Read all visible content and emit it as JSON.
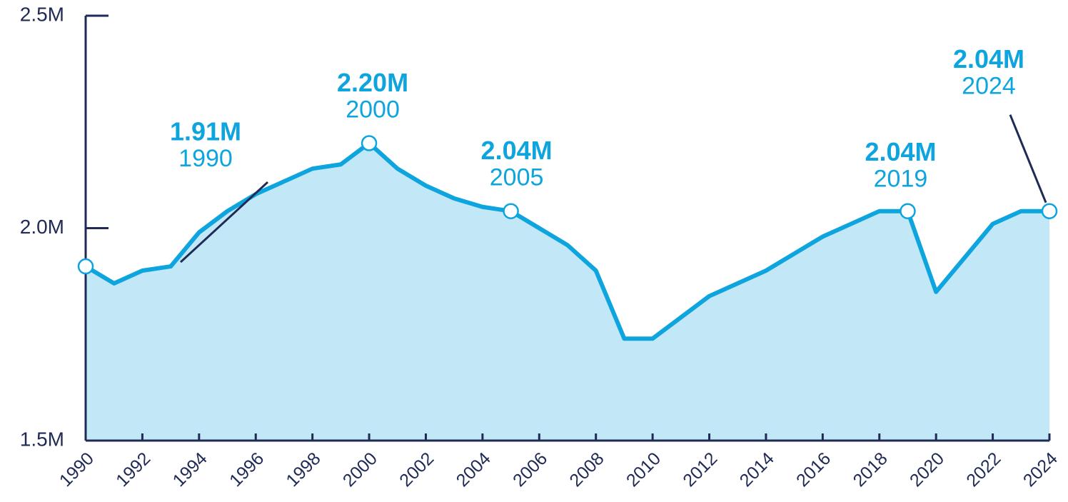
{
  "chart_data": {
    "type": "area",
    "x": [
      1990,
      1991,
      1992,
      1993,
      1994,
      1995,
      1996,
      1997,
      1998,
      1999,
      2000,
      2001,
      2002,
      2003,
      2004,
      2005,
      2006,
      2007,
      2008,
      2009,
      2010,
      2011,
      2012,
      2013,
      2014,
      2015,
      2016,
      2017,
      2018,
      2019,
      2020,
      2021,
      2022,
      2023,
      2024
    ],
    "values": [
      1.91,
      1.87,
      1.9,
      1.91,
      1.99,
      2.04,
      2.08,
      2.11,
      2.14,
      2.15,
      2.2,
      2.14,
      2.1,
      2.07,
      2.05,
      2.04,
      2.0,
      1.96,
      1.9,
      1.74,
      1.74,
      1.79,
      1.84,
      1.87,
      1.9,
      1.94,
      1.98,
      2.01,
      2.04,
      2.04,
      1.85,
      1.93,
      2.01,
      2.04,
      2.04
    ],
    "value_labels": [
      "1.91M",
      null,
      null,
      null,
      null,
      null,
      null,
      null,
      null,
      null,
      "2.20M",
      null,
      null,
      null,
      null,
      "2.04M",
      null,
      null,
      null,
      null,
      null,
      null,
      null,
      null,
      null,
      null,
      null,
      null,
      null,
      "2.04M",
      null,
      null,
      null,
      null,
      "2.04M"
    ],
    "color": "#0ea5df",
    "fill_color": "#c2e8f8",
    "xlim": [
      1990,
      2024
    ],
    "xticks": [
      1990,
      1992,
      1994,
      1996,
      1998,
      2000,
      2002,
      2004,
      2006,
      2008,
      2010,
      2012,
      2014,
      2016,
      2018,
      2020,
      2022,
      2024
    ],
    "ylim": [
      1.5,
      2.5
    ],
    "yticks": [
      {
        "value": 1.5,
        "label": "1.5M"
      },
      {
        "value": 2.0,
        "label": "2.0M"
      },
      {
        "value": 2.5,
        "label": "2.5M"
      }
    ]
  }
}
